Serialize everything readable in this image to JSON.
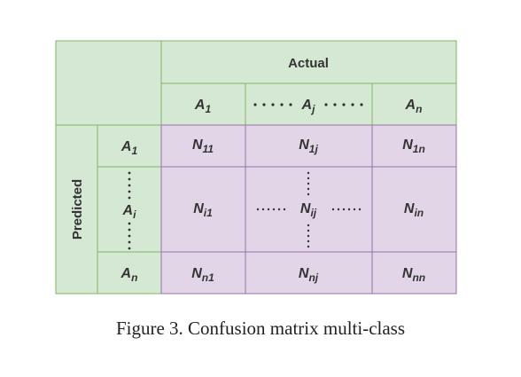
{
  "header": {
    "actual_label": "Actual",
    "predicted_label": "Predicted"
  },
  "columns": [
    {
      "base": "A",
      "sub": "1"
    },
    {
      "base": "A",
      "sub": "j"
    },
    {
      "base": "A",
      "sub": "n"
    }
  ],
  "rows": [
    {
      "label": {
        "base": "A",
        "sub": "1"
      },
      "cells": [
        {
          "base": "N",
          "sub": "11"
        },
        {
          "base": "N",
          "sub": "1j"
        },
        {
          "base": "N",
          "sub": "1n"
        }
      ]
    },
    {
      "label": {
        "base": "A",
        "sub": "i"
      },
      "cells": [
        {
          "base": "N",
          "sub": "i1"
        },
        {
          "base": "N",
          "sub": "ij"
        },
        {
          "base": "N",
          "sub": "in"
        }
      ]
    },
    {
      "label": {
        "base": "A",
        "sub": "n"
      },
      "cells": [
        {
          "base": "N",
          "sub": "n1"
        },
        {
          "base": "N",
          "sub": "nj"
        },
        {
          "base": "N",
          "sub": "nn"
        }
      ]
    }
  ],
  "caption": "Figure 3. Confusion matrix multi-class",
  "colors": {
    "header_fill": "#d5e8d4",
    "header_stroke": "#82b366",
    "body_fill": "#e1d5e7",
    "body_stroke": "#9673a6"
  }
}
